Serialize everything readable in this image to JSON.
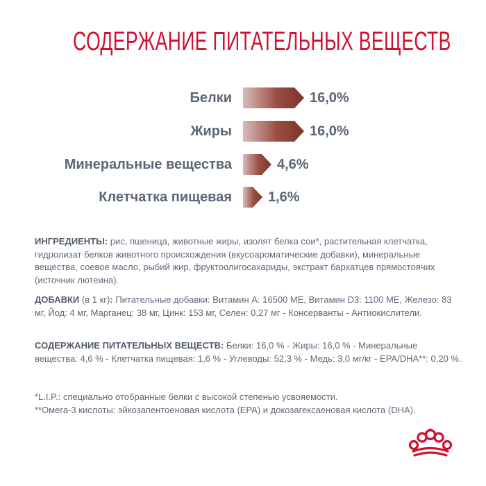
{
  "title": "Содержание питательных веществ",
  "chart_data": {
    "type": "bar",
    "categories": [
      "Белки",
      "Жиры",
      "Минеральные вещества",
      "Клетчатка пищевая"
    ],
    "values": [
      16.0,
      16.0,
      4.6,
      1.6
    ],
    "value_labels": [
      "16,0%",
      "16,0%",
      "4,6%",
      "1,6%"
    ],
    "unit": "%",
    "xlim": [
      0,
      16.0
    ],
    "gradient_colors": [
      "#d7bcb7",
      "#9a4f45",
      "#7d3328"
    ]
  },
  "ingredients": {
    "label": "ИНГРЕДИЕНТЫ:",
    "text": "рис, пшеница, животные жиры, изолят белка сои*, растительная клетчатка, гидролизат белков животного происхождения (вкусоароматические добавки), минеральные вещества, соевое масло, рыбий жир, фруктоолигосахариды, экстракт бархатцев прямостоячих (источник лютеина)."
  },
  "additives": {
    "label": "ДОБАВКИ",
    "label_suffix": " (в 1 кг)",
    "label_colon": ":",
    "text": "Питательные добавки: Витамин А: 16500 МЕ, Витамин D3: 1100 МЕ, Железо: 83 мг, Йод: 4 мг, Марганец: 38 мг, Цинк: 153 мг, Селен: 0,27 мг - Консерванты - Антиокислители."
  },
  "nutrients": {
    "label": "СОДЕРЖАНИЕ ПИТАТЕЛЬНЫХ ВЕЩЕСТВ:",
    "text": "Белки: 16,0 % - Жиры: 16,0 % - Минеральные вещества: 4,6 % - Клетчатка пищевая: 1,6 % - Углеводы: 52,3 % - Медь: 3,0 мг/кг - EPA/DHA**: 0,20 %."
  },
  "footnotes": [
    "*L.I.P.: специально отобранные белки с высокой степенью усвояемости.",
    "**Омега-3 кислоты: эйкозапентоеновая кислота (EPA) и докозагексаеновая кислота (DHA)."
  ],
  "brand_color": "#d0102e",
  "logo_icon": "crown-icon"
}
